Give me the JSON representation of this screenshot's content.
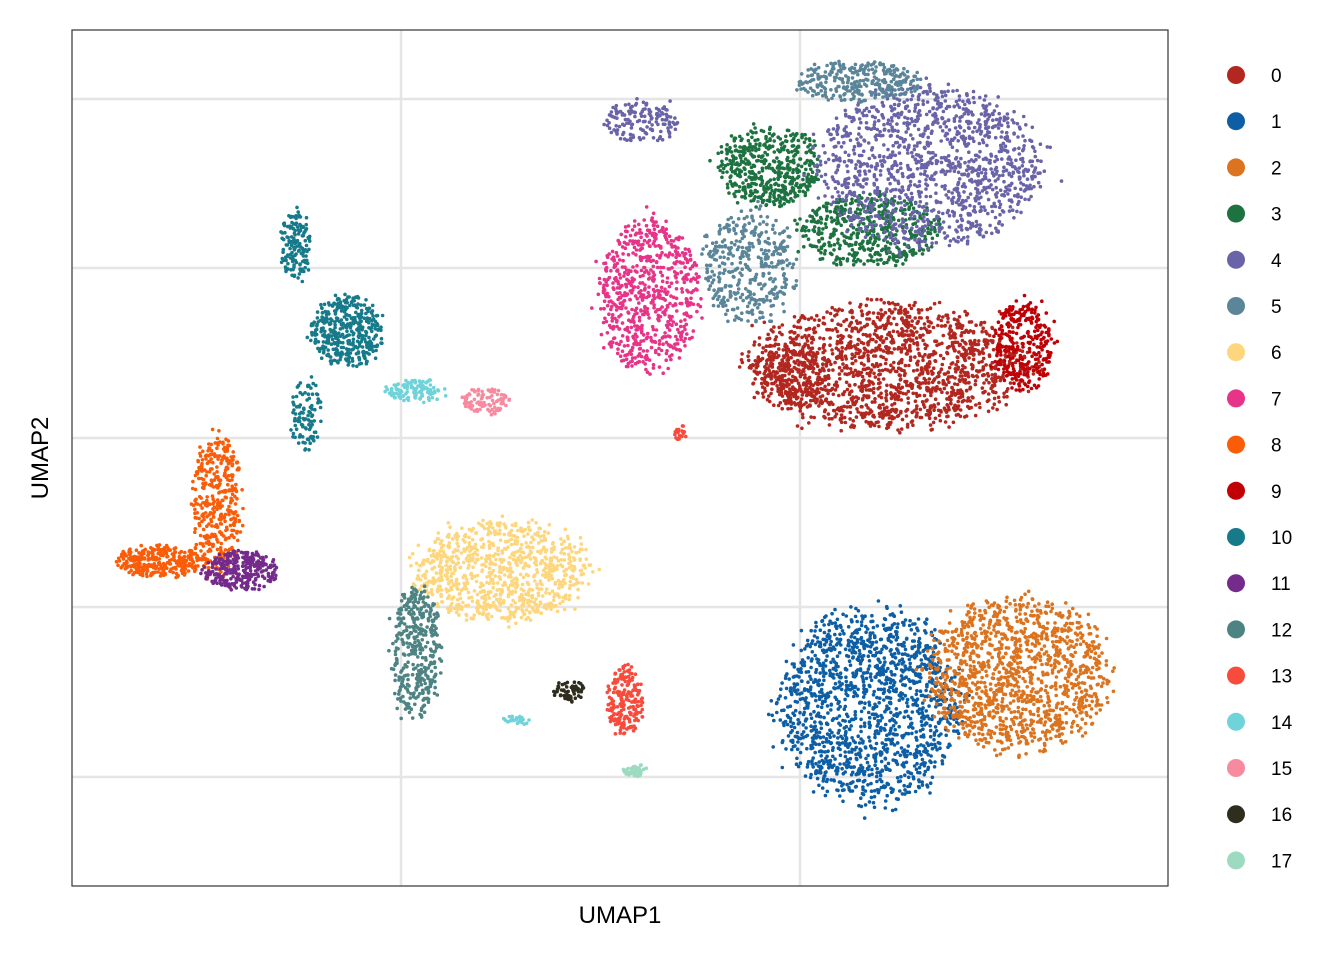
{
  "chart_data": {
    "type": "scatter",
    "xlabel": "UMAP1",
    "ylabel": "UMAP2",
    "xlim": [
      0,
      110
    ],
    "ylim": [
      0,
      85.6
    ],
    "grid": true,
    "tick_labels_shown": false,
    "legend_position": "right",
    "series": [
      {
        "name": "0",
        "color": "#B2271F",
        "clusters": [
          {
            "cx": 82,
            "cy": 52,
            "rx": 14.0,
            "ry": 6.0,
            "n": 1600
          },
          {
            "cx": 72,
            "cy": 51,
            "rx": 4.0,
            "ry": 3.0,
            "n": 200
          }
        ]
      },
      {
        "name": "1",
        "color": "#0D5EA5",
        "clusters": [
          {
            "cx": 80,
            "cy": 18,
            "rx": 9.0,
            "ry": 9.5,
            "n": 1500
          }
        ]
      },
      {
        "name": "2",
        "color": "#DB731F",
        "clusters": [
          {
            "cx": 95,
            "cy": 21,
            "rx": 9.0,
            "ry": 7.5,
            "n": 1300
          }
        ]
      },
      {
        "name": "3",
        "color": "#1D7240",
        "clusters": [
          {
            "cx": 70,
            "cy": 72,
            "rx": 5.0,
            "ry": 4.0,
            "n": 500
          },
          {
            "cx": 80,
            "cy": 65.5,
            "rx": 7.0,
            "ry": 3.5,
            "n": 500
          }
        ]
      },
      {
        "name": "4",
        "color": "#6964A8",
        "clusters": [
          {
            "cx": 86,
            "cy": 72,
            "rx": 11.0,
            "ry": 8.0,
            "n": 1300
          },
          {
            "cx": 57,
            "cy": 76.5,
            "rx": 4.0,
            "ry": 2.0,
            "n": 150
          }
        ]
      },
      {
        "name": "5",
        "color": "#5B8598",
        "clusters": [
          {
            "cx": 68,
            "cy": 62,
            "rx": 4.5,
            "ry": 5.5,
            "n": 400
          },
          {
            "cx": 79,
            "cy": 80.5,
            "rx": 6.0,
            "ry": 2.0,
            "n": 300
          }
        ]
      },
      {
        "name": "6",
        "color": "#FDD67E",
        "clusters": [
          {
            "cx": 43,
            "cy": 31.5,
            "rx": 8.5,
            "ry": 5.0,
            "n": 900
          }
        ]
      },
      {
        "name": "7",
        "color": "#E73388",
        "clusters": [
          {
            "cx": 58,
            "cy": 59,
            "rx": 5.0,
            "ry": 7.5,
            "n": 700
          }
        ]
      },
      {
        "name": "8",
        "color": "#FB5C08",
        "clusters": [
          {
            "cx": 14.5,
            "cy": 38,
            "rx": 2.5,
            "ry": 7.0,
            "n": 400
          },
          {
            "cx": 9,
            "cy": 32.5,
            "rx": 4.5,
            "ry": 1.5,
            "n": 300
          }
        ]
      },
      {
        "name": "9",
        "color": "#C00004",
        "clusters": [
          {
            "cx": 95.5,
            "cy": 54,
            "rx": 3.0,
            "ry": 4.5,
            "n": 300
          }
        ]
      },
      {
        "name": "10",
        "color": "#167A8B",
        "clusters": [
          {
            "cx": 27.5,
            "cy": 55.5,
            "rx": 3.5,
            "ry": 3.5,
            "n": 400
          },
          {
            "cx": 22.5,
            "cy": 64,
            "rx": 1.5,
            "ry": 3.5,
            "n": 150
          },
          {
            "cx": 23.5,
            "cy": 47,
            "rx": 1.5,
            "ry": 3.5,
            "n": 100
          }
        ]
      },
      {
        "name": "11",
        "color": "#752B8B",
        "clusters": [
          {
            "cx": 17,
            "cy": 31.5,
            "rx": 3.5,
            "ry": 2.0,
            "n": 300
          }
        ]
      },
      {
        "name": "12",
        "color": "#4D8383",
        "clusters": [
          {
            "cx": 34.5,
            "cy": 23.5,
            "rx": 2.5,
            "ry": 6.5,
            "n": 400
          }
        ]
      },
      {
        "name": "13",
        "color": "#F84B3C",
        "clusters": [
          {
            "cx": 55.5,
            "cy": 18.5,
            "rx": 1.8,
            "ry": 3.5,
            "n": 200
          },
          {
            "cx": 61,
            "cy": 45.3,
            "rx": 0.7,
            "ry": 0.8,
            "n": 20
          }
        ]
      },
      {
        "name": "14",
        "color": "#70D3DA",
        "clusters": [
          {
            "cx": 34.5,
            "cy": 49.5,
            "rx": 2.8,
            "ry": 1.2,
            "n": 120
          },
          {
            "cx": 44.5,
            "cy": 16.5,
            "rx": 1.3,
            "ry": 0.5,
            "n": 30
          }
        ]
      },
      {
        "name": "15",
        "color": "#F78A9E",
        "clusters": [
          {
            "cx": 41.5,
            "cy": 48.5,
            "rx": 2.3,
            "ry": 1.3,
            "n": 100
          }
        ]
      },
      {
        "name": "16",
        "color": "#2E2D1E",
        "clusters": [
          {
            "cx": 50,
            "cy": 19.5,
            "rx": 1.5,
            "ry": 1.0,
            "n": 60
          }
        ]
      },
      {
        "name": "17",
        "color": "#9DDBC1",
        "clusters": [
          {
            "cx": 56.5,
            "cy": 11.5,
            "rx": 1.2,
            "ry": 0.6,
            "n": 50
          }
        ]
      }
    ]
  }
}
